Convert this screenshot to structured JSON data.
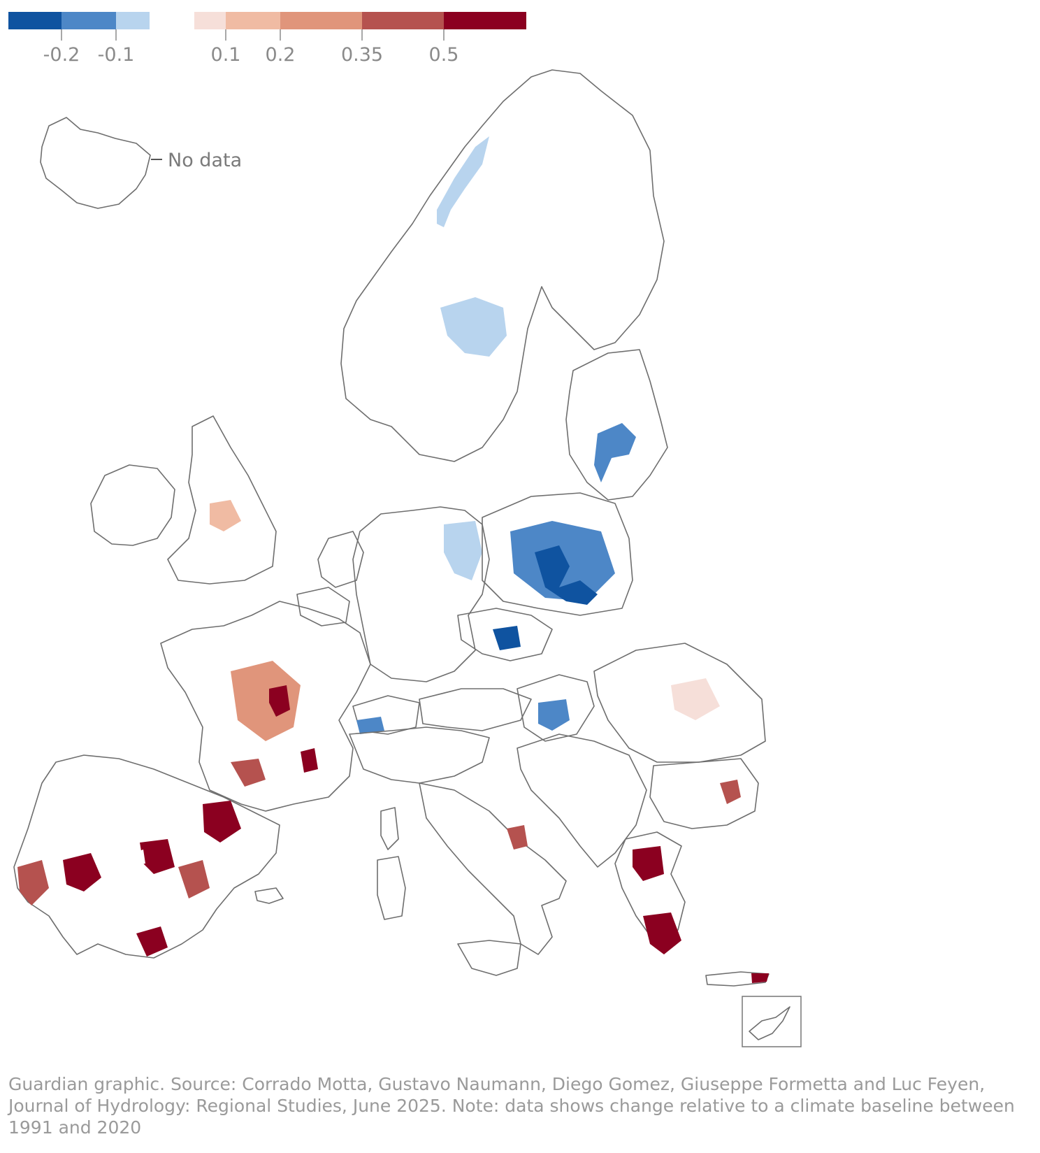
{
  "legend": {
    "negative_bins": [
      {
        "color": "#0f53a0"
      },
      {
        "color": "#4d87c7"
      },
      {
        "color": "#b8d4ee"
      }
    ],
    "positive_bins": [
      {
        "color": "#f6dfd9"
      },
      {
        "color": "#f0bba3"
      },
      {
        "color": "#e0957b"
      },
      {
        "color": "#b5524f"
      },
      {
        "color": "#8b0020"
      }
    ],
    "negative_ticks": [
      "-0.2",
      "-0.1"
    ],
    "positive_ticks": [
      "0.1",
      "0.2",
      "0.35",
      "0.5"
    ],
    "no_data_label": "No data",
    "no_data_color": "#e2e2e2"
  },
  "source_note": "Guardian graphic. Source: Corrado Motta, Gustavo Naumann, Diego Gomez, Giuseppe Formetta and Luc Feyen, Journal of Hydrology: Regional Studies, June 2025. Note: data shows change relative to a climate baseline between 1991 and 2020"
}
